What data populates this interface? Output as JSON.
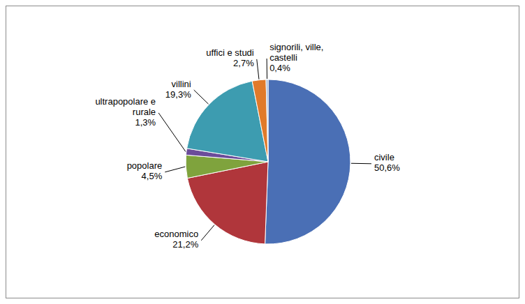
{
  "chart_data": {
    "type": "pie",
    "categories": [
      "civile",
      "economico",
      "popolare",
      "ultrapopolare e rurale",
      "villini",
      "uffici e studi",
      "signorili, ville, castelli"
    ],
    "values": [
      50.6,
      21.2,
      4.5,
      1.3,
      19.3,
      2.7,
      0.4
    ],
    "value_labels": [
      "50,6%",
      "21,2%",
      "4,5%",
      "1,3%",
      "19,3%",
      "2,7%",
      "0,4%"
    ],
    "colors": [
      "#4a6fb5",
      "#b0363b",
      "#7fa33d",
      "#6b4c9a",
      "#3d9cb0",
      "#e07a2a",
      "#9db8dc"
    ],
    "data_labels": true
  }
}
